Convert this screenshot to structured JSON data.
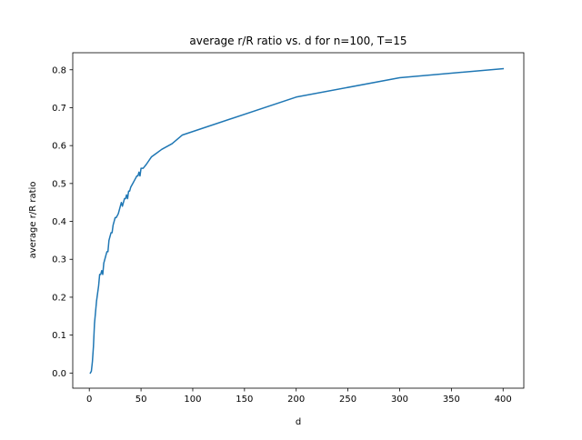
{
  "chart_data": {
    "type": "line",
    "title": "average r/R ratio vs. d for n=100, T=15",
    "xlabel": "d",
    "ylabel": "average r/R ratio",
    "xlim": [
      -16,
      420
    ],
    "ylim": [
      -0.04,
      0.845
    ],
    "xticks": [
      0,
      50,
      100,
      150,
      200,
      250,
      300,
      350,
      400
    ],
    "yticks": [
      0.0,
      0.1,
      0.2,
      0.3,
      0.4,
      0.5,
      0.6,
      0.7,
      0.8
    ],
    "xtick_labels": [
      "0",
      "50",
      "100",
      "150",
      "200",
      "250",
      "300",
      "350",
      "400"
    ],
    "ytick_labels": [
      "0.0",
      "0.1",
      "0.2",
      "0.3",
      "0.4",
      "0.5",
      "0.6",
      "0.7",
      "0.8"
    ],
    "grid": false,
    "line_color": "#1f77b4",
    "series": [
      {
        "x": [
          1,
          2,
          3,
          4,
          5,
          6,
          7,
          8,
          9,
          10,
          11,
          12,
          13,
          14,
          15,
          16,
          17,
          18,
          19,
          20,
          21,
          22,
          23,
          24,
          25,
          26,
          28,
          30,
          31,
          32,
          33,
          34,
          35,
          36,
          37,
          38,
          39,
          40,
          42,
          44,
          46,
          47,
          48,
          49,
          50,
          52,
          55,
          60,
          65,
          70,
          80,
          90,
          200,
          300,
          400
        ],
        "y": [
          0.0,
          0.005,
          0.03,
          0.07,
          0.13,
          0.16,
          0.19,
          0.21,
          0.23,
          0.26,
          0.26,
          0.27,
          0.26,
          0.29,
          0.3,
          0.31,
          0.32,
          0.32,
          0.35,
          0.36,
          0.37,
          0.37,
          0.39,
          0.4,
          0.41,
          0.41,
          0.42,
          0.44,
          0.45,
          0.44,
          0.45,
          0.46,
          0.46,
          0.47,
          0.46,
          0.48,
          0.48,
          0.49,
          0.5,
          0.51,
          0.52,
          0.52,
          0.53,
          0.52,
          0.54,
          0.54,
          0.55,
          0.57,
          0.58,
          0.59,
          0.605,
          0.628,
          0.728,
          0.779,
          0.803
        ]
      }
    ]
  }
}
